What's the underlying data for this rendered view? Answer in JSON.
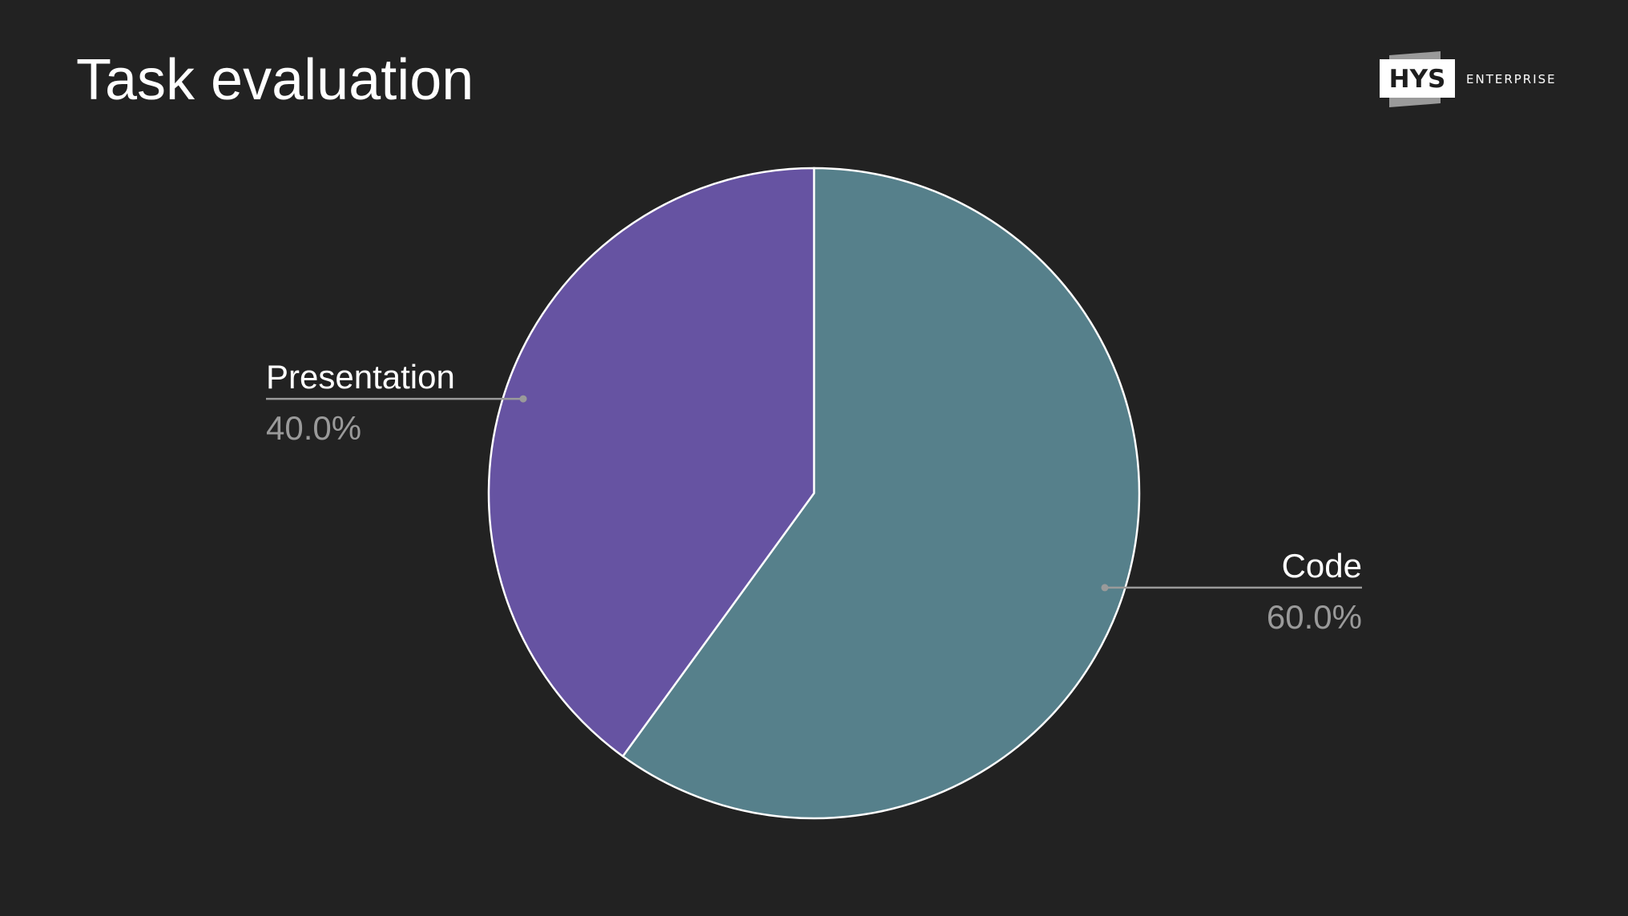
{
  "slide": {
    "title": "Task evaluation"
  },
  "logo": {
    "mark": "HYS",
    "text": "ENTERPRISE"
  },
  "chart_data": {
    "type": "pie",
    "start_angle_deg": 0,
    "direction": "clockwise",
    "slices": [
      {
        "name": "Code",
        "value": 60.0,
        "label": "60.0%",
        "color": "#56808b"
      },
      {
        "name": "Presentation",
        "value": 40.0,
        "label": "40.0%",
        "color": "#6653a2"
      }
    ],
    "colors": {
      "background": "#222222",
      "slice_border": "#ffffff",
      "leader_line": "#9a9a9a",
      "label_name": "#ffffff",
      "label_value": "#9a9a9a"
    }
  }
}
